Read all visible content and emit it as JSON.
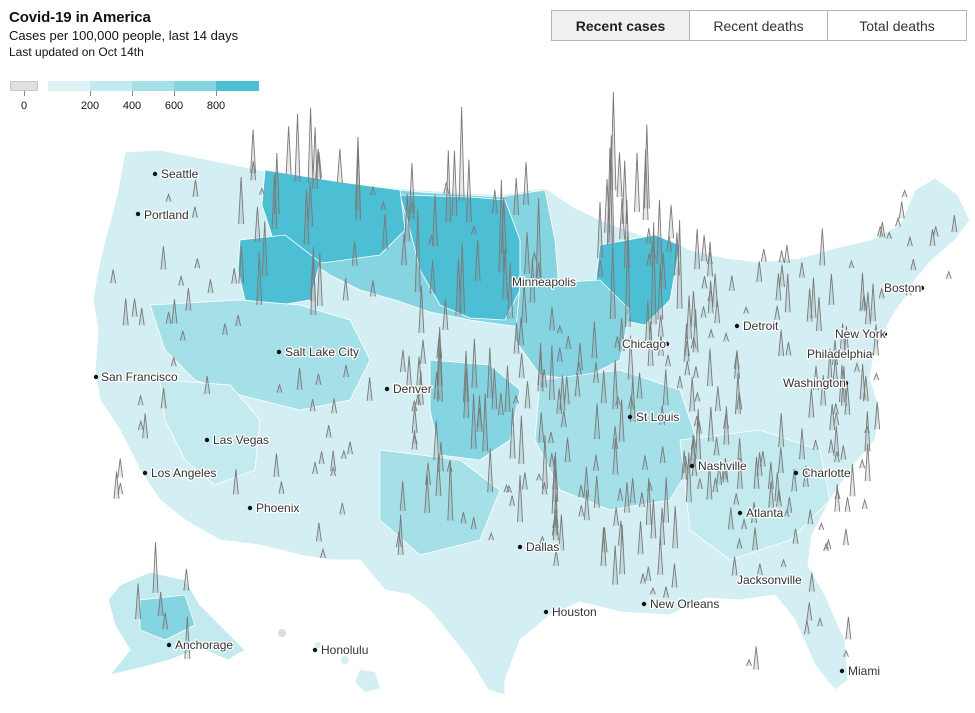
{
  "header": {
    "title": "Covid-19 in America",
    "subtitle": "Cases per 100,000 people, last 14 days",
    "updated": "Last updated on Oct 14th"
  },
  "tabs": [
    {
      "label": "Recent cases",
      "active": true
    },
    {
      "label": "Recent deaths",
      "active": false
    },
    {
      "label": "Total deaths",
      "active": false
    }
  ],
  "legend": {
    "zero_label": "0",
    "tick_labels": [
      "200",
      "400",
      "600",
      "800"
    ],
    "colors": [
      "#e0e0e0",
      "#dff3f6",
      "#c3eaef",
      "#a5e0e9",
      "#84d4e1",
      "#4cbfd4"
    ]
  },
  "cities": [
    {
      "name": "Seattle"
    },
    {
      "name": "Portland"
    },
    {
      "name": "San Francisco"
    },
    {
      "name": "Los Angeles"
    },
    {
      "name": "Las Vegas"
    },
    {
      "name": "Phoenix"
    },
    {
      "name": "Salt Lake City"
    },
    {
      "name": "Denver"
    },
    {
      "name": "Minneapolis"
    },
    {
      "name": "Chicago"
    },
    {
      "name": "Detroit"
    },
    {
      "name": "St Louis"
    },
    {
      "name": "Dallas"
    },
    {
      "name": "Houston"
    },
    {
      "name": "New Orleans"
    },
    {
      "name": "Nashville"
    },
    {
      "name": "Atlanta"
    },
    {
      "name": "Charlotte"
    },
    {
      "name": "Jacksonville"
    },
    {
      "name": "Miami"
    },
    {
      "name": "Washington"
    },
    {
      "name": "Philadelphia"
    },
    {
      "name": "New York"
    },
    {
      "name": "Boston"
    },
    {
      "name": "Anchorage"
    },
    {
      "name": "Honolulu"
    }
  ]
}
